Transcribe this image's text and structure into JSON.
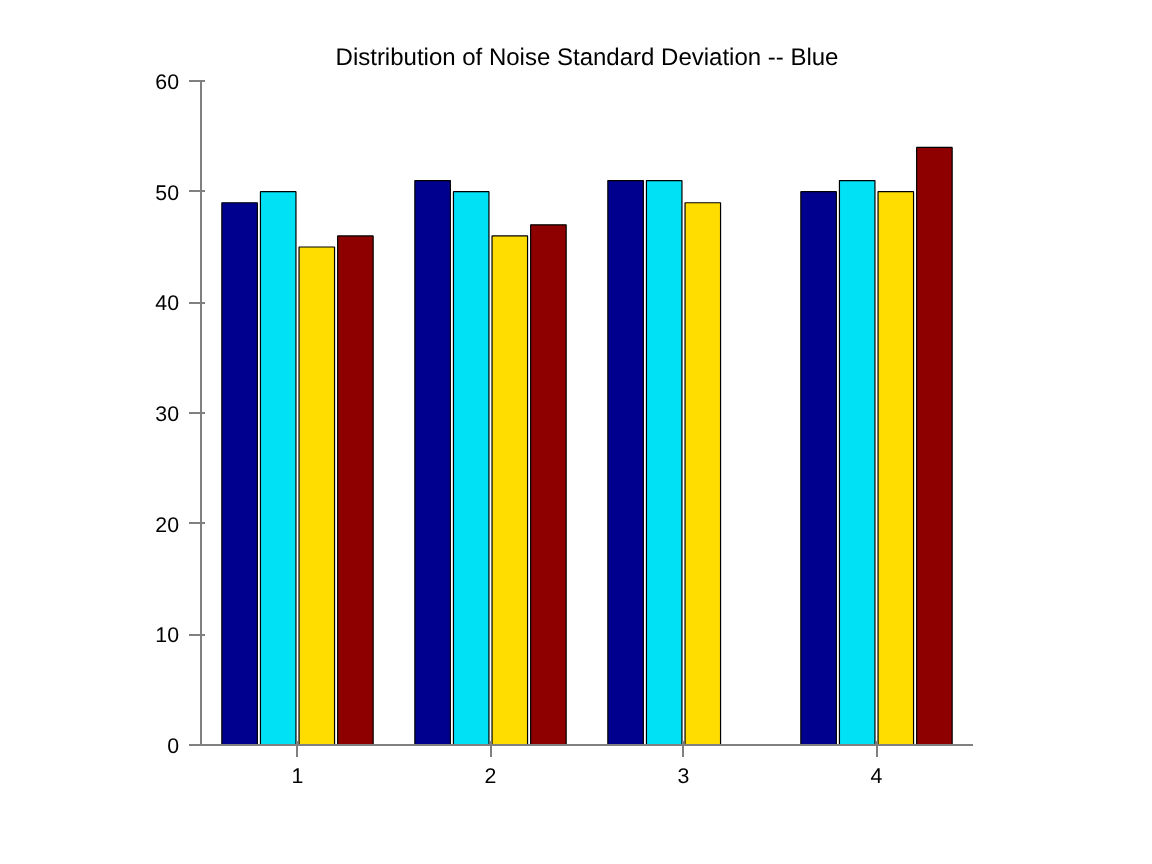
{
  "chart_data": {
    "type": "bar",
    "title": "Distribution of Noise Standard Deviation -- Blue",
    "categories": [
      "1",
      "2",
      "3",
      "4"
    ],
    "series": [
      {
        "color": "#00008f",
        "values": [
          49,
          51,
          51,
          50
        ]
      },
      {
        "color": "#00e1f5",
        "values": [
          50,
          50,
          51,
          51
        ]
      },
      {
        "color": "#ffdd00",
        "values": [
          45,
          46,
          49,
          50
        ]
      },
      {
        "color": "#8e0000",
        "values": [
          46,
          47,
          null,
          54
        ]
      }
    ],
    "ylim": [
      0,
      60
    ],
    "yticks": [
      0,
      10,
      20,
      30,
      40,
      50,
      60
    ]
  }
}
